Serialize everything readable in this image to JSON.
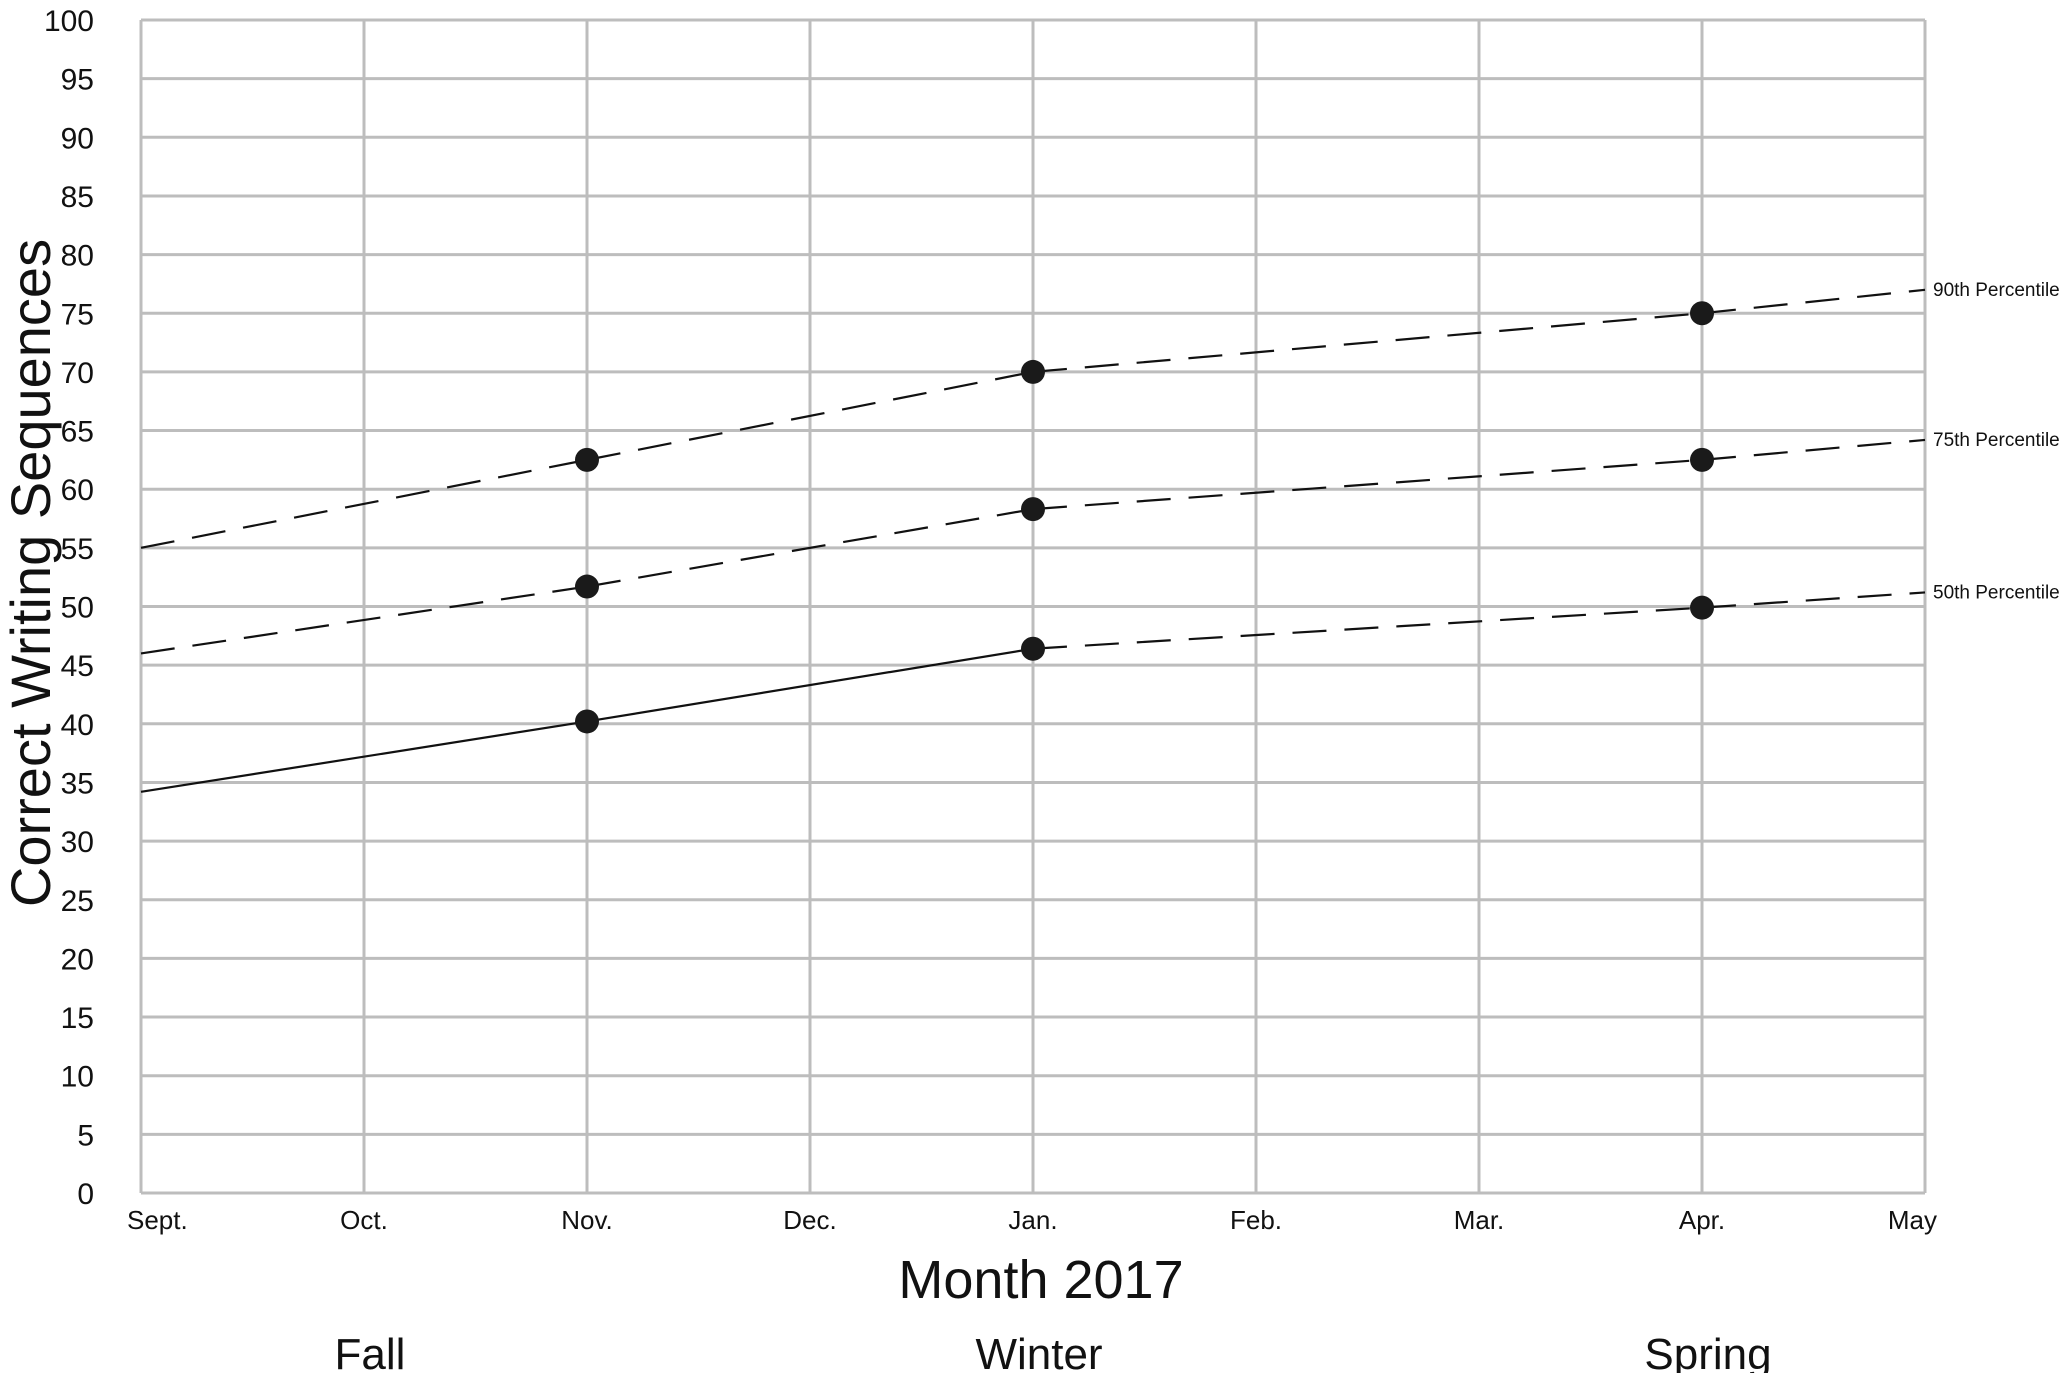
{
  "chart_data": {
    "type": "line",
    "title": "",
    "xlabel": "Month 2017",
    "ylabel": "Correct Writing Sequences",
    "categories": [
      "Sept.",
      "Oct.",
      "Nov.",
      "Dec.",
      "Jan.",
      "Feb.",
      "Mar.",
      "Apr.",
      "May"
    ],
    "ylim": [
      0,
      100
    ],
    "y_ticks": [
      0,
      5,
      10,
      15,
      20,
      25,
      30,
      35,
      40,
      45,
      50,
      55,
      60,
      65,
      70,
      75,
      80,
      85,
      90,
      95,
      100
    ],
    "grid": true,
    "seasons": [
      {
        "label": "Fall",
        "month": "Oct."
      },
      {
        "label": "Winter",
        "month": "Jan."
      },
      {
        "label": "Spring",
        "month": "Apr."
      }
    ],
    "series": [
      {
        "name": "90th Percentile",
        "line_start": {
          "x": "Sept.",
          "y": 55
        },
        "line_end": {
          "x": "May",
          "y": 77
        },
        "points": [
          {
            "x": "Nov.",
            "y": 62.5
          },
          {
            "x": "Jan.",
            "y": 70
          },
          {
            "x": "Apr.",
            "y": 75
          }
        ],
        "style": "dashed"
      },
      {
        "name": "75th Percentile",
        "line_start": {
          "x": "Sept.",
          "y": 46
        },
        "line_end": {
          "x": "May",
          "y": 64.2
        },
        "points": [
          {
            "x": "Nov.",
            "y": 51.7
          },
          {
            "x": "Jan.",
            "y": 58.3
          },
          {
            "x": "Apr.",
            "y": 62.5
          }
        ],
        "style": "dashed"
      },
      {
        "name": "50th Percentile",
        "line_start": {
          "x": "Sept.",
          "y": 34.2
        },
        "line_end": {
          "x": "May",
          "y": 51.2
        },
        "points": [
          {
            "x": "Nov.",
            "y": 40.2
          },
          {
            "x": "Jan.",
            "y": 46.4
          },
          {
            "x": "Apr.",
            "y": 49.9
          }
        ],
        "style": "solid until Jan., dashed after"
      }
    ],
    "colors": {
      "grid": "#bdbdbd",
      "line": "#111111",
      "marker": "#1a1a1a"
    }
  }
}
